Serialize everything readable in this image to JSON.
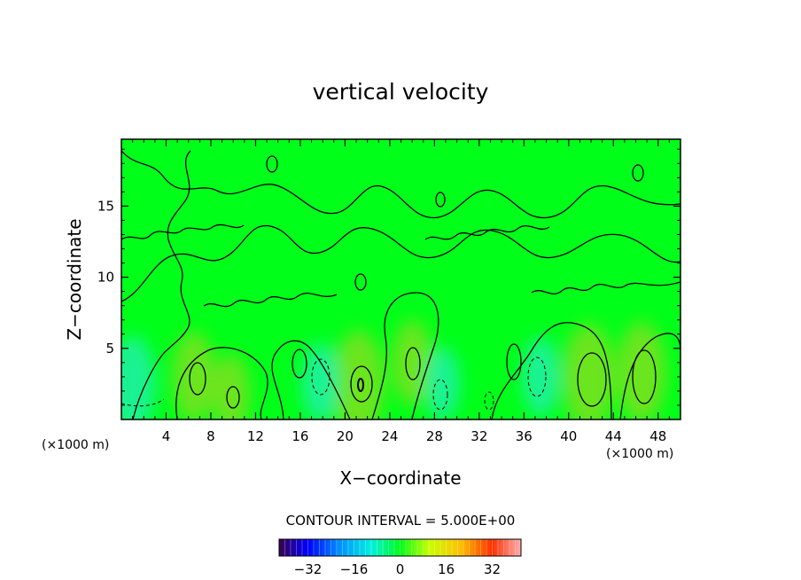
{
  "chart_data": {
    "type": "heatmap",
    "title": "vertical velocity",
    "xlabel": "X−coordinate",
    "ylabel": "Z−coordinate",
    "x_unit_left": "(×1000 m)",
    "x_unit_right": "(×1000 m)",
    "xlim": [
      0,
      50
    ],
    "ylim": [
      0,
      19.7
    ],
    "xticks": [
      4,
      8,
      12,
      16,
      20,
      24,
      28,
      32,
      36,
      40,
      44,
      48
    ],
    "yticks": [
      5,
      10,
      15
    ],
    "contour_interval_text": "CONTOUR INTERVAL = 5.000E+00",
    "colorbar": {
      "range": [
        -42,
        42
      ],
      "ticks": [
        -32,
        -16,
        0,
        16,
        32
      ],
      "tick_labels": [
        "−32",
        "−16",
        "0",
        "16",
        "32"
      ]
    },
    "colors": {
      "field_background": "#00ff19",
      "contour": "#000000",
      "updraft": "#7ee01c",
      "downdraft": "#22f0a8"
    },
    "features": [
      {
        "kind": "updraft",
        "x": 6.5,
        "z": 3.0,
        "value": 9
      },
      {
        "kind": "updraft",
        "x": 9.8,
        "z": 1.8,
        "value": 7
      },
      {
        "kind": "updraft",
        "x": 21.2,
        "z": 2.5,
        "value": 12
      },
      {
        "kind": "updraft",
        "x": 26.0,
        "z": 4.0,
        "value": 8
      },
      {
        "kind": "updraft",
        "x": 41.8,
        "z": 3.0,
        "value": 12
      },
      {
        "kind": "updraft",
        "x": 46.5,
        "z": 3.3,
        "value": 11
      },
      {
        "kind": "downdraft",
        "x": 1.0,
        "z": 2.5,
        "value": -10
      },
      {
        "kind": "downdraft",
        "x": 17.8,
        "z": 2.6,
        "value": -7
      },
      {
        "kind": "downdraft",
        "x": 28.7,
        "z": 2.5,
        "value": -6
      },
      {
        "kind": "downdraft",
        "x": 37.5,
        "z": 3.0,
        "value": -7
      }
    ]
  }
}
